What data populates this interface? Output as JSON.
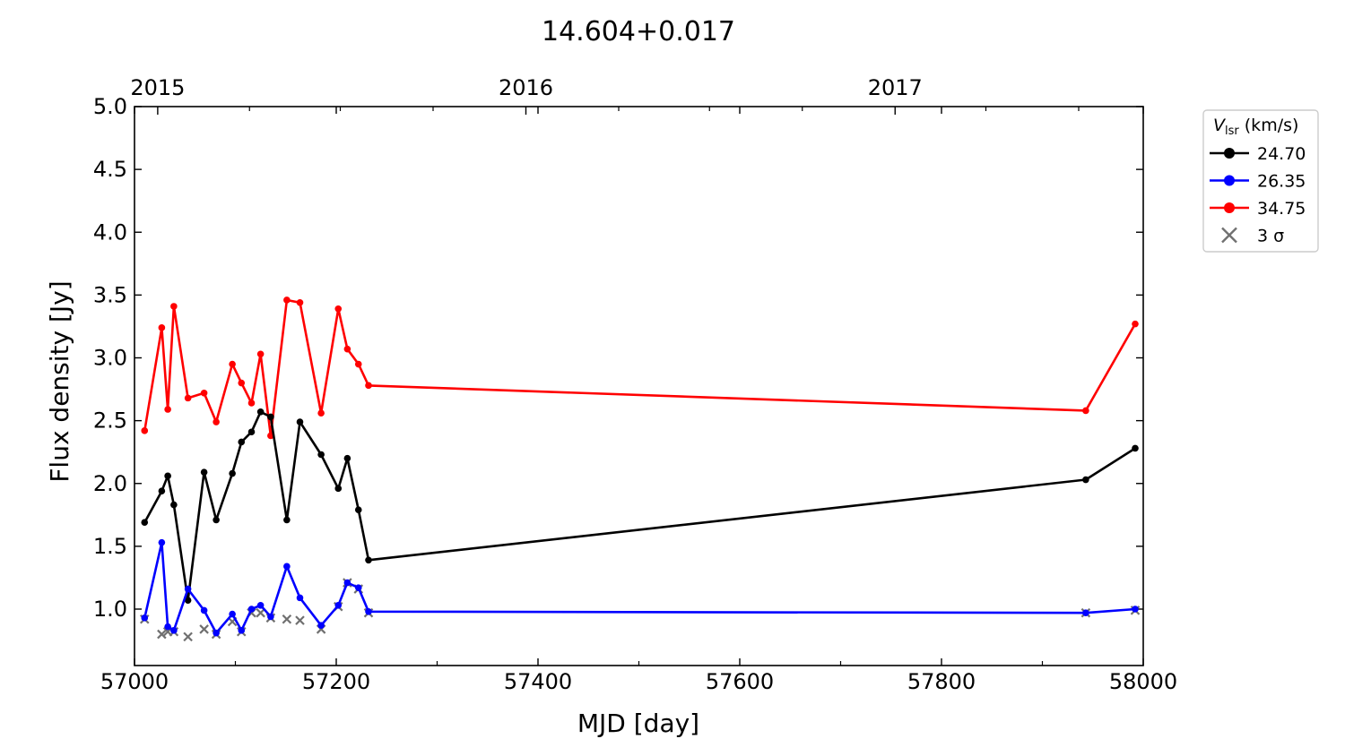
{
  "chart_data": {
    "type": "line",
    "title": "14.604+0.017",
    "xlabel": "MJD [day]",
    "ylabel": "Flux density [Jy]",
    "xlim": [
      57000,
      58000
    ],
    "ylim": [
      0.7,
      5.0
    ],
    "x_ticks": [
      57000,
      57200,
      57400,
      57600,
      57800,
      58000
    ],
    "x_minor_ticks": [
      57100,
      57300,
      57500,
      57700,
      57900
    ],
    "y_ticks": [
      "1.0",
      "1.5",
      "2.0",
      "2.5",
      "3.0",
      "3.5",
      "4.0",
      "4.5",
      "5.0"
    ],
    "top_axis_ticks": [
      {
        "label": "2015",
        "mjd": 57023
      },
      {
        "label": "2016",
        "mjd": 57388
      },
      {
        "label": "2017",
        "mjd": 57754
      }
    ],
    "top_axis_minor_ticks": [
      57114,
      57204,
      57296,
      57480,
      57570,
      57662,
      57844,
      57936
    ],
    "legend_title_main": "V",
    "legend_title_sub": "lsr",
    "legend_title_unit": " (km/s)",
    "legend_position": "outside-right-top",
    "series": [
      {
        "name": "24.70",
        "color": "#000000",
        "x": [
          57010,
          57027,
          57033,
          57039,
          57053,
          57069,
          57081,
          57097,
          57106,
          57116,
          57125,
          57135,
          57151,
          57164,
          57185,
          57202,
          57211,
          57222,
          57232,
          57943,
          57992
        ],
        "y": [
          1.69,
          1.94,
          2.06,
          1.83,
          1.07,
          2.09,
          1.71,
          2.08,
          2.33,
          2.41,
          2.57,
          2.53,
          1.71,
          2.49,
          2.23,
          1.96,
          2.2,
          1.79,
          1.39,
          2.03,
          2.28
        ]
      },
      {
        "name": "26.35",
        "color": "#0000ff",
        "x": [
          57010,
          57027,
          57033,
          57039,
          57053,
          57069,
          57081,
          57097,
          57106,
          57116,
          57125,
          57135,
          57151,
          57164,
          57185,
          57202,
          57211,
          57222,
          57232,
          57943,
          57992
        ],
        "y": [
          0.93,
          1.53,
          0.86,
          0.83,
          1.16,
          0.99,
          0.81,
          0.96,
          0.83,
          1.0,
          1.03,
          0.94,
          1.34,
          1.09,
          0.87,
          1.03,
          1.21,
          1.17,
          0.98,
          0.97,
          1.0
        ]
      },
      {
        "name": "34.75",
        "color": "#ff0000",
        "x": [
          57010,
          57027,
          57033,
          57039,
          57053,
          57069,
          57081,
          57097,
          57106,
          57116,
          57125,
          57135,
          57151,
          57164,
          57185,
          57202,
          57211,
          57222,
          57232,
          57943,
          57992
        ],
        "y": [
          2.42,
          3.24,
          2.59,
          3.41,
          2.68,
          2.72,
          2.49,
          2.95,
          2.8,
          2.64,
          3.03,
          2.38,
          3.46,
          3.44,
          2.56,
          3.39,
          3.07,
          2.95,
          2.78,
          2.58,
          3.27
        ]
      }
    ],
    "sigma_series": {
      "name": "3 σ",
      "color": "#707070",
      "x": [
        57010,
        57027,
        57033,
        57039,
        57053,
        57069,
        57081,
        57097,
        57106,
        57116,
        57125,
        57135,
        57151,
        57164,
        57185,
        57202,
        57211,
        57222,
        57232,
        57943,
        57992
      ],
      "y": [
        0.92,
        0.8,
        0.82,
        0.82,
        0.78,
        0.84,
        0.8,
        0.9,
        0.82,
        0.97,
        0.97,
        0.93,
        0.92,
        0.91,
        0.84,
        1.02,
        1.21,
        1.16,
        0.97,
        0.97,
        0.99
      ]
    }
  }
}
